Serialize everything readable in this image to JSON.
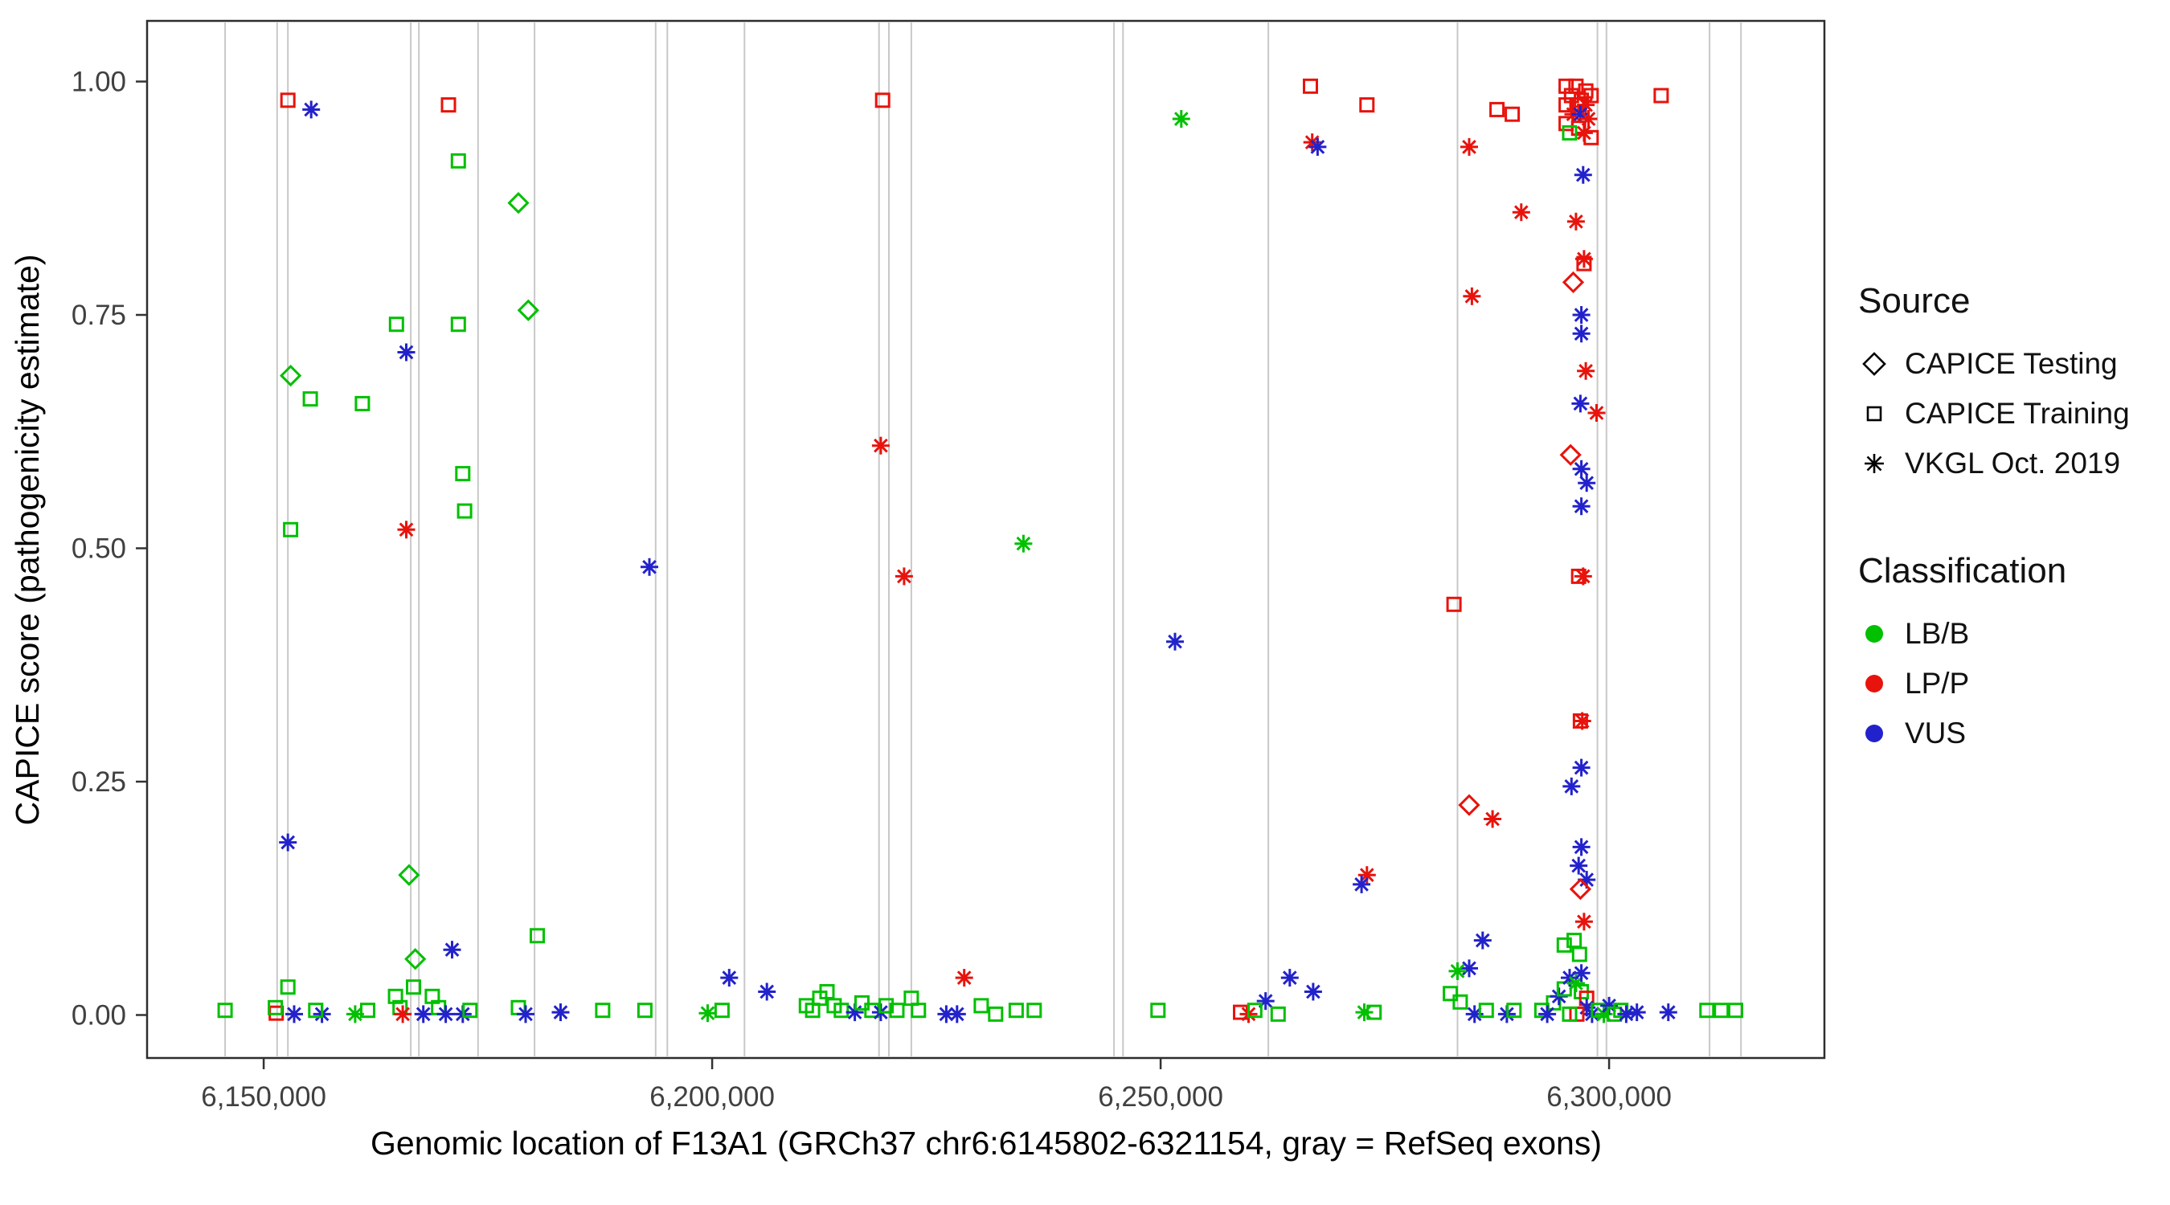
{
  "figure": {
    "background": "#ffffff",
    "exon_line_color": "#c8c8c8",
    "panel_border_color": "#2d2d2d",
    "tick_label_color": "#404040",
    "axis_title_color": "#000000"
  },
  "axes": {
    "x": {
      "title": "Genomic location of F13A1 (GRCh37 chr6:6145802-6321154, gray = RefSeq exons)",
      "ticks": [
        {
          "v": 6150000,
          "label": "6,150,000"
        },
        {
          "v": 6200000,
          "label": "6,200,000"
        },
        {
          "v": 6250000,
          "label": "6,250,000"
        },
        {
          "v": 6300000,
          "label": "6,300,000"
        }
      ]
    },
    "y": {
      "title": "CAPICE score (pathogenicity estimate)",
      "ticks": [
        {
          "v": 0.0,
          "label": "0.00"
        },
        {
          "v": 0.25,
          "label": "0.25"
        },
        {
          "v": 0.5,
          "label": "0.50"
        },
        {
          "v": 0.75,
          "label": "0.75"
        },
        {
          "v": 1.0,
          "label": "1.00"
        }
      ]
    }
  },
  "legend": {
    "source": {
      "title": "Source",
      "items": [
        {
          "label": "CAPICE Testing",
          "shape": "diamond"
        },
        {
          "label": "CAPICE Training",
          "shape": "square"
        },
        {
          "label": "VKGL Oct. 2019",
          "shape": "asterisk"
        }
      ]
    },
    "classification": {
      "title": "Classification",
      "items": [
        {
          "label": "LB/B",
          "color": "#00C000"
        },
        {
          "label": "LP/P",
          "color": "#E8130C"
        },
        {
          "label": "VUS",
          "color": "#2222CC"
        }
      ]
    }
  },
  "chart_data": {
    "type": "scatter",
    "title": "",
    "xlabel": "Genomic location of F13A1 (GRCh37 chr6:6145802-6321154, gray = RefSeq exons)",
    "ylabel": "CAPICE score (pathogenicity estimate)",
    "xlim": [
      6137000,
      6324000
    ],
    "ylim": [
      -0.046,
      1.065
    ],
    "legend_position": "right",
    "grid": false,
    "encoding": {
      "point_format": [
        "genomic_position",
        "capice_score",
        "source",
        "classification"
      ],
      "source_codes": {
        "T": "CAPICE Testing (diamond)",
        "R": "CAPICE Training (square)",
        "V": "VKGL Oct. 2019 (asterisk)"
      },
      "class_codes": {
        "B": "LB/B",
        "P": "LP/P",
        "U": "VUS"
      }
    },
    "class_colors": {
      "B": "#00C000",
      "P": "#E8130C",
      "U": "#2222CC"
    },
    "refseq_exons": [
      6145700,
      6151500,
      6152700,
      6166400,
      6167300,
      6173900,
      6180200,
      6193700,
      6195000,
      6203600,
      6218600,
      6219700,
      6222200,
      6244800,
      6245800,
      6262000,
      6283100,
      6298700,
      6299700,
      6311200,
      6314700
    ],
    "points": [
      [
        6152700,
        0.98,
        "R",
        "P"
      ],
      [
        6155300,
        0.97,
        "V",
        "U"
      ],
      [
        6170600,
        0.975,
        "R",
        "P"
      ],
      [
        6171700,
        0.915,
        "R",
        "B"
      ],
      [
        6178400,
        0.87,
        "T",
        "B"
      ],
      [
        6164800,
        0.74,
        "R",
        "B"
      ],
      [
        6171700,
        0.74,
        "R",
        "B"
      ],
      [
        6179500,
        0.755,
        "T",
        "B"
      ],
      [
        6165900,
        0.71,
        "V",
        "U"
      ],
      [
        6153000,
        0.685,
        "T",
        "B"
      ],
      [
        6155200,
        0.66,
        "R",
        "B"
      ],
      [
        6161000,
        0.655,
        "R",
        "B"
      ],
      [
        6172200,
        0.58,
        "R",
        "B"
      ],
      [
        6172400,
        0.54,
        "R",
        "B"
      ],
      [
        6165900,
        0.52,
        "V",
        "P"
      ],
      [
        6153000,
        0.52,
        "R",
        "B"
      ],
      [
        6193000,
        0.48,
        "V",
        "U"
      ],
      [
        6152700,
        0.185,
        "V",
        "U"
      ],
      [
        6166200,
        0.15,
        "T",
        "B"
      ],
      [
        6166900,
        0.06,
        "T",
        "B"
      ],
      [
        6171000,
        0.07,
        "V",
        "U"
      ],
      [
        6180500,
        0.085,
        "R",
        "B"
      ],
      [
        6145700,
        0.005,
        "R",
        "B"
      ],
      [
        6151400,
        0.002,
        "R",
        "P"
      ],
      [
        6152700,
        0.03,
        "R",
        "B"
      ],
      [
        6151300,
        0.008,
        "R",
        "B"
      ],
      [
        6153400,
        0.001,
        "V",
        "U"
      ],
      [
        6156500,
        0.001,
        "V",
        "U"
      ],
      [
        6155800,
        0.005,
        "R",
        "B"
      ],
      [
        6160200,
        0.001,
        "V",
        "B"
      ],
      [
        6161600,
        0.005,
        "R",
        "B"
      ],
      [
        6164700,
        0.02,
        "R",
        "B"
      ],
      [
        6165200,
        0.008,
        "R",
        "B"
      ],
      [
        6165500,
        0.001,
        "V",
        "P"
      ],
      [
        6166700,
        0.03,
        "R",
        "B"
      ],
      [
        6167800,
        0.001,
        "V",
        "U"
      ],
      [
        6168800,
        0.02,
        "R",
        "B"
      ],
      [
        6169500,
        0.008,
        "R",
        "B"
      ],
      [
        6170300,
        0.001,
        "V",
        "U"
      ],
      [
        6172200,
        0.001,
        "V",
        "U"
      ],
      [
        6173000,
        0.005,
        "R",
        "B"
      ],
      [
        6178400,
        0.008,
        "R",
        "B"
      ],
      [
        6179200,
        0.001,
        "V",
        "U"
      ],
      [
        6183100,
        0.003,
        "V",
        "U"
      ],
      [
        6187800,
        0.005,
        "R",
        "B"
      ],
      [
        6192500,
        0.005,
        "R",
        "B"
      ],
      [
        6199500,
        0.002,
        "V",
        "B"
      ],
      [
        6201100,
        0.005,
        "R",
        "B"
      ],
      [
        6219000,
        0.98,
        "R",
        "P"
      ],
      [
        6218800,
        0.61,
        "V",
        "P"
      ],
      [
        6221400,
        0.47,
        "V",
        "P"
      ],
      [
        6234700,
        0.505,
        "V",
        "B"
      ],
      [
        6201900,
        0.04,
        "V",
        "U"
      ],
      [
        6206100,
        0.025,
        "V",
        "U"
      ],
      [
        6210500,
        0.01,
        "R",
        "B"
      ],
      [
        6211200,
        0.005,
        "R",
        "B"
      ],
      [
        6212000,
        0.018,
        "R",
        "B"
      ],
      [
        6212800,
        0.025,
        "R",
        "B"
      ],
      [
        6213600,
        0.01,
        "R",
        "B"
      ],
      [
        6214400,
        0.005,
        "R",
        "B"
      ],
      [
        6215900,
        0.003,
        "V",
        "U"
      ],
      [
        6216700,
        0.013,
        "R",
        "B"
      ],
      [
        6217800,
        0.005,
        "R",
        "B"
      ],
      [
        6218800,
        0.003,
        "V",
        "U"
      ],
      [
        6219400,
        0.01,
        "R",
        "B"
      ],
      [
        6220600,
        0.005,
        "R",
        "B"
      ],
      [
        6222200,
        0.018,
        "R",
        "B"
      ],
      [
        6223000,
        0.005,
        "R",
        "B"
      ],
      [
        6226100,
        0.001,
        "V",
        "U"
      ],
      [
        6227300,
        0.001,
        "V",
        "U"
      ],
      [
        6228100,
        0.04,
        "V",
        "P"
      ],
      [
        6230000,
        0.01,
        "R",
        "B"
      ],
      [
        6231600,
        0.001,
        "R",
        "B"
      ],
      [
        6233900,
        0.005,
        "R",
        "B"
      ],
      [
        6235900,
        0.005,
        "R",
        "B"
      ],
      [
        6252300,
        0.96,
        "V",
        "B"
      ],
      [
        6251600,
        0.4,
        "V",
        "U"
      ],
      [
        6249700,
        0.005,
        "R",
        "B"
      ],
      [
        6266700,
        0.995,
        "R",
        "P"
      ],
      [
        6273000,
        0.975,
        "R",
        "P"
      ],
      [
        6266900,
        0.935,
        "V",
        "P"
      ],
      [
        6267500,
        0.93,
        "V",
        "U"
      ],
      [
        6258900,
        0.003,
        "R",
        "P"
      ],
      [
        6259800,
        0.001,
        "V",
        "P"
      ],
      [
        6261700,
        0.015,
        "V",
        "U"
      ],
      [
        6260500,
        0.005,
        "R",
        "B"
      ],
      [
        6264400,
        0.04,
        "V",
        "U"
      ],
      [
        6263100,
        0.001,
        "R",
        "B"
      ],
      [
        6267000,
        0.025,
        "V",
        "U"
      ],
      [
        6272700,
        0.003,
        "V",
        "B"
      ],
      [
        6273800,
        0.003,
        "R",
        "B"
      ],
      [
        6273000,
        0.15,
        "V",
        "P"
      ],
      [
        6272400,
        0.14,
        "V",
        "U"
      ],
      [
        6287500,
        0.97,
        "R",
        "P"
      ],
      [
        6289200,
        0.965,
        "R",
        "P"
      ],
      [
        6284400,
        0.93,
        "V",
        "P"
      ],
      [
        6290200,
        0.86,
        "V",
        "P"
      ],
      [
        6282700,
        0.44,
        "R",
        "P"
      ],
      [
        6284700,
        0.77,
        "V",
        "P"
      ],
      [
        6284400,
        0.225,
        "T",
        "P"
      ],
      [
        6287000,
        0.21,
        "V",
        "P"
      ],
      [
        6285900,
        0.08,
        "V",
        "U"
      ],
      [
        6284400,
        0.05,
        "V",
        "U"
      ],
      [
        6283100,
        0.047,
        "V",
        "B"
      ],
      [
        6282300,
        0.023,
        "R",
        "B"
      ],
      [
        6283400,
        0.014,
        "R",
        "B"
      ],
      [
        6285000,
        0.001,
        "V",
        "U"
      ],
      [
        6286300,
        0.005,
        "R",
        "B"
      ],
      [
        6295200,
        0.995,
        "R",
        "P"
      ],
      [
        6296300,
        0.995,
        "R",
        "P"
      ],
      [
        6297400,
        0.99,
        "R",
        "P"
      ],
      [
        6298000,
        0.985,
        "R",
        "P"
      ],
      [
        6295800,
        0.985,
        "R",
        "P"
      ],
      [
        6296900,
        0.98,
        "R",
        "P"
      ],
      [
        6295200,
        0.975,
        "R",
        "P"
      ],
      [
        6296400,
        0.975,
        "R",
        "P"
      ],
      [
        6297400,
        0.975,
        "V",
        "P"
      ],
      [
        6296000,
        0.965,
        "V",
        "P"
      ],
      [
        6296800,
        0.965,
        "V",
        "U"
      ],
      [
        6297700,
        0.96,
        "V",
        "P"
      ],
      [
        6295200,
        0.955,
        "R",
        "P"
      ],
      [
        6296600,
        0.95,
        "R",
        "P"
      ],
      [
        6297200,
        0.945,
        "V",
        "P"
      ],
      [
        6298000,
        0.94,
        "R",
        "P"
      ],
      [
        6295600,
        0.945,
        "R",
        "B"
      ],
      [
        6297100,
        0.9,
        "V",
        "U"
      ],
      [
        6296300,
        0.85,
        "V",
        "P"
      ],
      [
        6297200,
        0.805,
        "R",
        "P"
      ],
      [
        6297200,
        0.81,
        "V",
        "P"
      ],
      [
        6296000,
        0.785,
        "T",
        "P"
      ],
      [
        6296900,
        0.75,
        "V",
        "U"
      ],
      [
        6296900,
        0.73,
        "V",
        "U"
      ],
      [
        6297400,
        0.69,
        "V",
        "P"
      ],
      [
        6296800,
        0.655,
        "V",
        "U"
      ],
      [
        6298600,
        0.645,
        "V",
        "P"
      ],
      [
        6295700,
        0.6,
        "T",
        "P"
      ],
      [
        6296900,
        0.585,
        "V",
        "U"
      ],
      [
        6297500,
        0.57,
        "V",
        "U"
      ],
      [
        6296900,
        0.545,
        "V",
        "U"
      ],
      [
        6296600,
        0.47,
        "R",
        "P"
      ],
      [
        6297100,
        0.47,
        "V",
        "P"
      ],
      [
        6296800,
        0.315,
        "R",
        "P"
      ],
      [
        6297000,
        0.315,
        "V",
        "P"
      ],
      [
        6296900,
        0.265,
        "V",
        "U"
      ],
      [
        6295800,
        0.245,
        "V",
        "U"
      ],
      [
        6296900,
        0.18,
        "V",
        "U"
      ],
      [
        6296600,
        0.16,
        "V",
        "U"
      ],
      [
        6297500,
        0.145,
        "V",
        "U"
      ],
      [
        6296800,
        0.135,
        "T",
        "P"
      ],
      [
        6297200,
        0.1,
        "V",
        "P"
      ],
      [
        6295000,
        0.075,
        "R",
        "B"
      ],
      [
        6296100,
        0.08,
        "R",
        "B"
      ],
      [
        6296700,
        0.065,
        "R",
        "B"
      ],
      [
        6292500,
        0.005,
        "R",
        "B"
      ],
      [
        6293800,
        0.013,
        "R",
        "B"
      ],
      [
        6294400,
        0.02,
        "V",
        "U"
      ],
      [
        6295000,
        0.028,
        "R",
        "B"
      ],
      [
        6295600,
        0.04,
        "V",
        "U"
      ],
      [
        6296300,
        0.034,
        "V",
        "B"
      ],
      [
        6296900,
        0.045,
        "V",
        "U"
      ],
      [
        6296900,
        0.025,
        "R",
        "B"
      ],
      [
        6297500,
        0.018,
        "R",
        "P"
      ],
      [
        6297500,
        0.008,
        "V",
        "U"
      ],
      [
        6298100,
        0.001,
        "V",
        "U"
      ],
      [
        6298800,
        0.005,
        "R",
        "B"
      ],
      [
        6299400,
        0.001,
        "V",
        "B"
      ],
      [
        6300000,
        0.01,
        "V",
        "U"
      ],
      [
        6300600,
        0.001,
        "R",
        "B"
      ],
      [
        6301300,
        0.005,
        "R",
        "B"
      ],
      [
        6301900,
        0.001,
        "V",
        "U"
      ],
      [
        6296400,
        0.001,
        "R",
        "P"
      ],
      [
        6295600,
        0.001,
        "R",
        "B"
      ],
      [
        6293100,
        0.001,
        "V",
        "U"
      ],
      [
        6288600,
        0.001,
        "V",
        "U"
      ],
      [
        6289400,
        0.005,
        "R",
        "B"
      ],
      [
        6305800,
        0.985,
        "R",
        "P"
      ],
      [
        6303100,
        0.003,
        "V",
        "U"
      ],
      [
        6306600,
        0.003,
        "V",
        "U"
      ],
      [
        6310900,
        0.005,
        "R",
        "B"
      ],
      [
        6312500,
        0.005,
        "R",
        "B"
      ],
      [
        6314100,
        0.005,
        "R",
        "B"
      ]
    ]
  }
}
